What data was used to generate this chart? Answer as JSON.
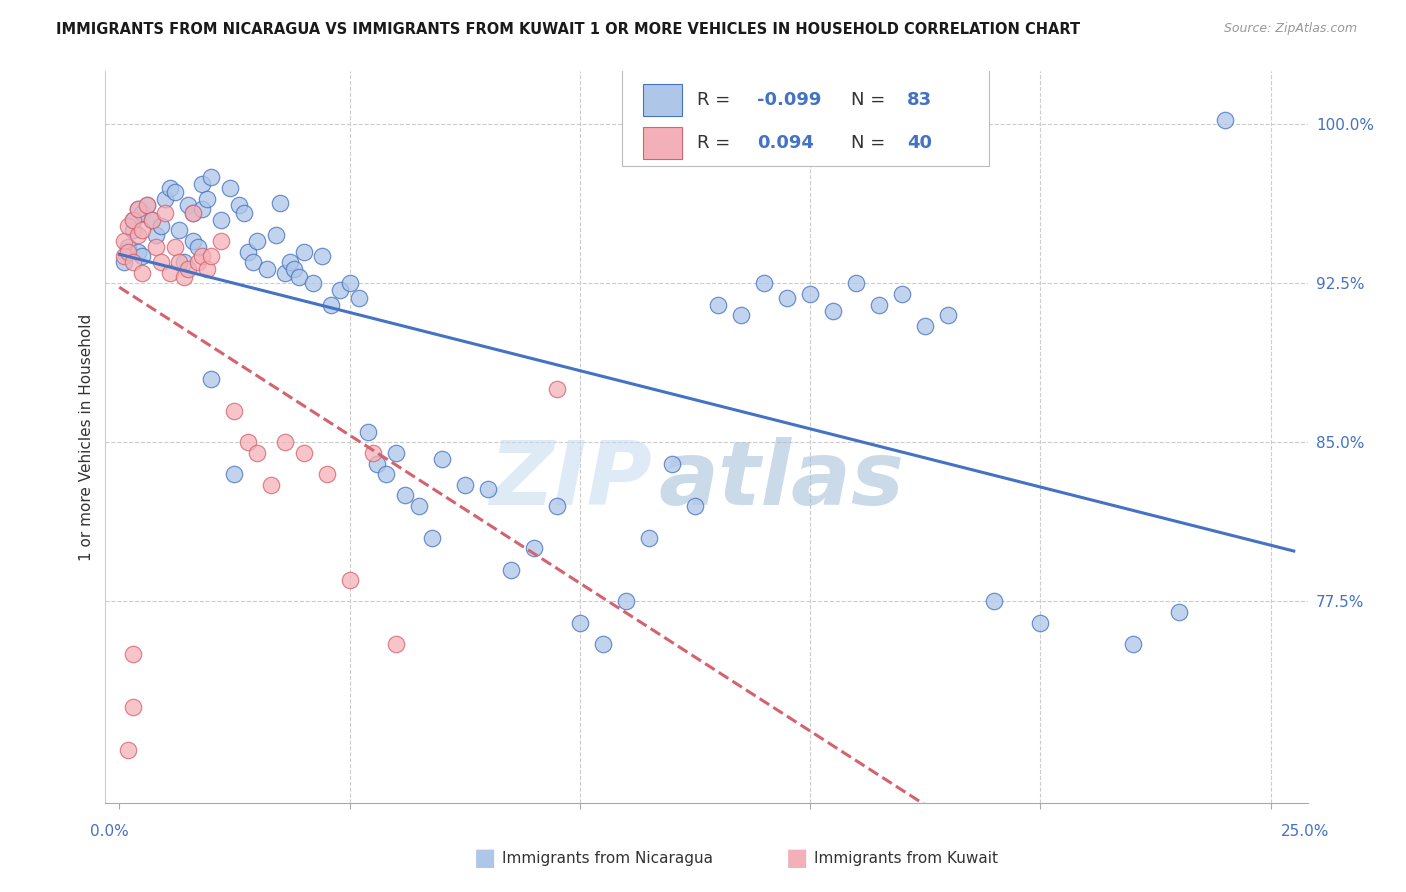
{
  "title": "IMMIGRANTS FROM NICARAGUA VS IMMIGRANTS FROM KUWAIT 1 OR MORE VEHICLES IN HOUSEHOLD CORRELATION CHART",
  "source": "Source: ZipAtlas.com",
  "ylabel": "1 or more Vehicles in Household",
  "color_nicaragua": "#aec6e8",
  "color_kuwait": "#f4b0b8",
  "line_color_nicaragua": "#4472c4",
  "line_color_kuwait": "#d4636e",
  "background_color": "#ffffff",
  "watermark_zip": "ZIP",
  "watermark_atlas": "atlas",
  "legend_r_nic": "-0.099",
  "legend_n_nic": "83",
  "legend_r_kuw": "0.094",
  "legend_n_kuw": "40",
  "ylim": [
    68.0,
    102.5
  ],
  "xlim": [
    -0.003,
    0.258
  ],
  "yticks": [
    77.5,
    85.0,
    92.5,
    100.0
  ],
  "xticks": [
    0.0,
    0.05,
    0.1,
    0.15,
    0.2,
    0.25
  ],
  "nicaragua_x": [
    0.001,
    0.002,
    0.003,
    0.003,
    0.004,
    0.004,
    0.005,
    0.005,
    0.006,
    0.007,
    0.008,
    0.009,
    0.01,
    0.011,
    0.012,
    0.013,
    0.014,
    0.015,
    0.016,
    0.016,
    0.017,
    0.018,
    0.018,
    0.019,
    0.02,
    0.022,
    0.024,
    0.026,
    0.027,
    0.028,
    0.029,
    0.03,
    0.032,
    0.034,
    0.035,
    0.036,
    0.037,
    0.038,
    0.039,
    0.04,
    0.042,
    0.044,
    0.046,
    0.048,
    0.05,
    0.052,
    0.054,
    0.056,
    0.058,
    0.06,
    0.062,
    0.065,
    0.068,
    0.07,
    0.075,
    0.08,
    0.085,
    0.09,
    0.095,
    0.1,
    0.105,
    0.11,
    0.115,
    0.12,
    0.125,
    0.13,
    0.135,
    0.14,
    0.145,
    0.15,
    0.155,
    0.16,
    0.165,
    0.17,
    0.175,
    0.18,
    0.19,
    0.2,
    0.22,
    0.23,
    0.02,
    0.025,
    0.24
  ],
  "nicaragua_y": [
    93.5,
    94.2,
    95.0,
    95.5,
    96.0,
    94.0,
    95.8,
    93.8,
    96.2,
    95.5,
    94.8,
    95.2,
    96.5,
    97.0,
    96.8,
    95.0,
    93.5,
    96.2,
    94.5,
    95.8,
    94.2,
    96.0,
    97.2,
    96.5,
    97.5,
    95.5,
    97.0,
    96.2,
    95.8,
    94.0,
    93.5,
    94.5,
    93.2,
    94.8,
    96.3,
    93.0,
    93.5,
    93.2,
    92.8,
    94.0,
    92.5,
    93.8,
    91.5,
    92.2,
    92.5,
    91.8,
    85.5,
    84.0,
    83.5,
    84.5,
    82.5,
    82.0,
    80.5,
    84.2,
    83.0,
    82.8,
    79.0,
    80.0,
    82.0,
    76.5,
    75.5,
    77.5,
    80.5,
    84.0,
    82.0,
    91.5,
    91.0,
    92.5,
    91.8,
    92.0,
    91.2,
    92.5,
    91.5,
    92.0,
    90.5,
    91.0,
    77.5,
    76.5,
    75.5,
    77.0,
    88.0,
    83.5,
    100.2
  ],
  "kuwait_x": [
    0.001,
    0.001,
    0.002,
    0.002,
    0.003,
    0.003,
    0.004,
    0.004,
    0.005,
    0.005,
    0.006,
    0.007,
    0.008,
    0.009,
    0.01,
    0.011,
    0.012,
    0.013,
    0.014,
    0.015,
    0.016,
    0.017,
    0.018,
    0.019,
    0.02,
    0.022,
    0.025,
    0.028,
    0.03,
    0.033,
    0.036,
    0.04,
    0.045,
    0.05,
    0.055,
    0.06,
    0.095,
    0.003,
    0.003,
    0.002
  ],
  "kuwait_y": [
    94.5,
    93.8,
    95.2,
    94.0,
    95.5,
    93.5,
    96.0,
    94.8,
    95.0,
    93.0,
    96.2,
    95.5,
    94.2,
    93.5,
    95.8,
    93.0,
    94.2,
    93.5,
    92.8,
    93.2,
    95.8,
    93.5,
    93.8,
    93.2,
    93.8,
    94.5,
    86.5,
    85.0,
    84.5,
    83.0,
    85.0,
    84.5,
    83.5,
    78.5,
    84.5,
    75.5,
    87.5,
    75.0,
    72.5,
    70.5
  ]
}
